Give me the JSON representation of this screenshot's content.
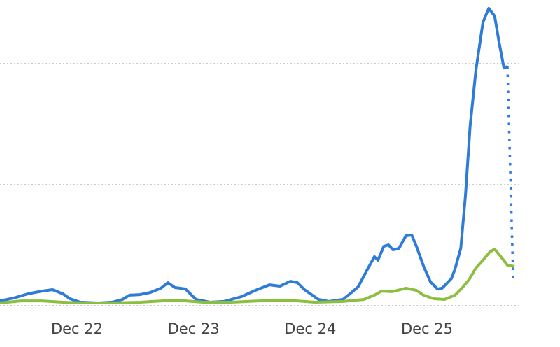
{
  "chart_data": {
    "type": "line",
    "xlim": [
      21.34,
      26.14
    ],
    "xticks": [
      {
        "value": 22,
        "label": "Dec 22"
      },
      {
        "value": 23,
        "label": "Dec 23"
      },
      {
        "value": 24,
        "label": "Dec 24"
      },
      {
        "value": 25,
        "label": "Dec 25"
      }
    ],
    "ylim": [
      0,
      252.6
    ],
    "yticks": [
      0,
      100,
      200
    ],
    "grid": true,
    "series": [
      {
        "color": "#2f7bd8",
        "style": "solid",
        "x": [
          21.34,
          21.46,
          21.58,
          21.64,
          21.7,
          21.79,
          21.88,
          21.94,
          22.03,
          22.18,
          22.3,
          22.39,
          22.45,
          22.54,
          22.63,
          22.72,
          22.78,
          22.84,
          22.93,
          23.02,
          23.14,
          23.26,
          23.41,
          23.53,
          23.65,
          23.74,
          23.83,
          23.89,
          23.95,
          24.07,
          24.16,
          24.28,
          24.34,
          24.41,
          24.49,
          24.55,
          24.58,
          24.63,
          24.67,
          24.71,
          24.76,
          24.82,
          24.87,
          24.91,
          24.97,
          25.03,
          25.09,
          25.13,
          25.21,
          25.24,
          25.29,
          25.33,
          25.37,
          25.42,
          25.48,
          25.53,
          25.58,
          25.62,
          25.66,
          25.69
        ],
        "values": [
          4.0,
          6.4,
          9.8,
          11.0,
          12.1,
          13.3,
          9.8,
          5.8,
          2.9,
          2.3,
          2.9,
          5.2,
          8.7,
          9.2,
          11.0,
          14.5,
          19.1,
          15.0,
          13.9,
          5.2,
          2.9,
          3.5,
          7.5,
          12.7,
          17.3,
          16.2,
          20.2,
          19.1,
          13.3,
          5.2,
          3.5,
          5.2,
          9.8,
          15.6,
          30.1,
          40.5,
          37.6,
          49.1,
          50.3,
          46.2,
          47.4,
          57.8,
          58.4,
          49.1,
          32.9,
          19.7,
          13.9,
          14.5,
          22.5,
          30.1,
          47.4,
          90.8,
          148.6,
          194.8,
          234.1,
          245.7,
          239.3,
          216.8,
          196.5,
          197.7
        ]
      },
      {
        "color": "#2f7bd8",
        "style": "dotted",
        "x": [
          25.69,
          25.74
        ],
        "values": [
          197.7,
          19.7
        ]
      },
      {
        "color": "#8cbf3f",
        "style": "solid",
        "x": [
          21.34,
          21.52,
          21.7,
          21.88,
          22.06,
          22.3,
          22.54,
          22.84,
          23.08,
          23.32,
          23.56,
          23.8,
          24.04,
          24.28,
          24.46,
          24.55,
          24.61,
          24.7,
          24.82,
          24.91,
          24.97,
          25.06,
          25.15,
          25.24,
          25.3,
          25.36,
          25.42,
          25.48,
          25.54,
          25.58,
          25.63,
          25.69,
          25.75
        ],
        "values": [
          2.3,
          4.0,
          4.0,
          2.9,
          2.3,
          2.3,
          2.9,
          4.6,
          2.9,
          2.9,
          4.0,
          4.6,
          2.9,
          3.5,
          5.2,
          8.7,
          12.1,
          11.6,
          14.5,
          12.7,
          8.7,
          5.8,
          5.2,
          8.7,
          14.5,
          21.4,
          31.2,
          37.6,
          44.5,
          46.8,
          41.0,
          33.5,
          32.4
        ]
      }
    ]
  }
}
